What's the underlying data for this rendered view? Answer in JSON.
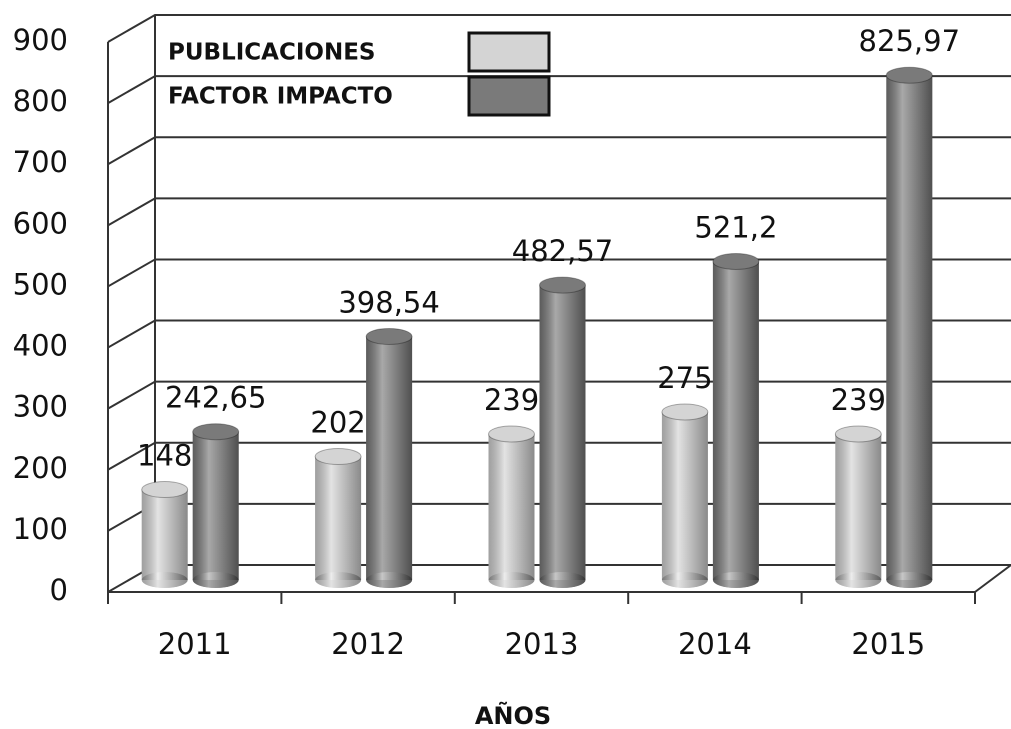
{
  "chart_data": {
    "type": "bar3d",
    "categories": [
      "2011",
      "2012",
      "2013",
      "2014",
      "2015"
    ],
    "series": [
      {
        "name": "PUBLICACIONES",
        "color": "#d4d4d4",
        "values": [
          148,
          202,
          239,
          275,
          239
        ]
      },
      {
        "name": "FACTOR IMPACTO",
        "color": "#7a7a7a",
        "values": [
          242.65,
          398.54,
          482.57,
          521.2,
          825.97
        ],
        "value_labels": [
          "242,65",
          "398,54",
          "482,57",
          "521,2",
          "825,97"
        ]
      }
    ],
    "x_label": "AÑOS",
    "ylim": [
      0,
      900
    ],
    "yticks": [
      0,
      100,
      200,
      300,
      400,
      500,
      600,
      700,
      800,
      900
    ],
    "grid": true
  }
}
